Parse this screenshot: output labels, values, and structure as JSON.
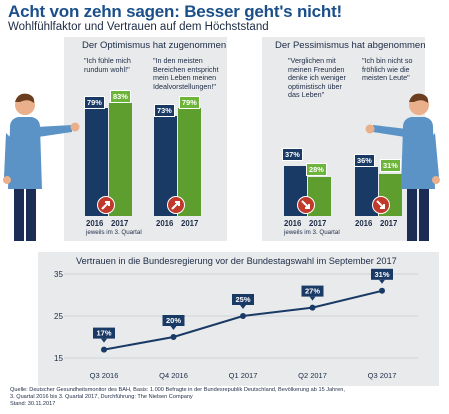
{
  "header": {
    "title": "Acht von zehn sagen: Besser geht's nicht!",
    "subtitle": "Wohlfühlfaktor und Vertrauen auf dem Höchststand"
  },
  "optimism": {
    "title": "Der Optimismus hat zugenommen",
    "quote1": "\"Ich fühle mich rundum wohl!\"",
    "quote2": "\"In den meisten Bereichen entspricht mein Leben meinen Idealvorstellungen!\"",
    "note": "jeweils im 3. Quartal"
  },
  "pessimism": {
    "title": "Der Pessimismus hat abgenommen",
    "quote1": "\"Verglichen mit meinen Freunden denke ich weniger optimistisch über das Leben\"",
    "quote2": "\"Ich bin nicht so fröhlich wie die meisten Leute\"",
    "note": "jeweils im 3. Quartal"
  },
  "colors": {
    "navy": "#1a3a66",
    "green": "#5e9e2e",
    "red": "#c0392b",
    "title_blue": "#1b4f8a"
  },
  "chart_data": [
    {
      "type": "bar",
      "title": "Der Optimismus hat zugenommen",
      "groups": [
        {
          "label": "\"Ich fühle mich rundum wohl!\"",
          "categories": [
            "2016",
            "2017"
          ],
          "values": [
            79,
            83
          ]
        },
        {
          "label": "\"In den meisten Bereichen entspricht mein Leben meinen Idealvorstellungen!\"",
          "categories": [
            "2016",
            "2017"
          ],
          "values": [
            73,
            79
          ]
        }
      ],
      "value_labels": [
        [
          "79%",
          "83%"
        ],
        [
          "73%",
          "79%"
        ]
      ]
    },
    {
      "type": "bar",
      "title": "Der Pessimismus hat abgenommen",
      "groups": [
        {
          "label": "\"Verglichen mit meinen Freunden denke ich weniger optimistisch über das Leben\"",
          "categories": [
            "2016",
            "2017"
          ],
          "values": [
            37,
            28
          ]
        },
        {
          "label": "\"Ich bin nicht so fröhlich wie die meisten Leute\"",
          "categories": [
            "2016",
            "2017"
          ],
          "values": [
            36,
            31
          ]
        }
      ],
      "value_labels": [
        [
          "37%",
          "28%"
        ],
        [
          "36%",
          "31%"
        ]
      ]
    },
    {
      "type": "line",
      "title": "Vertrauen in die Bundesregierung vor der Bundestagswahl im September 2017",
      "x": [
        "Q3 2016",
        "Q4 2016",
        "Q1 2017",
        "Q2 2017",
        "Q3 2017"
      ],
      "values": [
        17,
        20,
        25,
        27,
        31
      ],
      "value_labels": [
        "17%",
        "20%",
        "25%",
        "27%",
        "31%"
      ],
      "ylim": [
        15,
        35
      ],
      "yticks": [
        "15",
        "25",
        "35"
      ],
      "grid": true
    }
  ],
  "source": {
    "line1": "Quelle: Deutscher Gesundheitsmonitor des BAH, Basis: 1.000 Befragte in der Bundesrepublik Deutschland, Bevölkerung ab 15 Jahren,",
    "line2": "3. Quartal 2016 bis 3. Quartal 2017, Durchführung: The Nielsen Company",
    "line3": "Stand: 30.11.2017"
  }
}
